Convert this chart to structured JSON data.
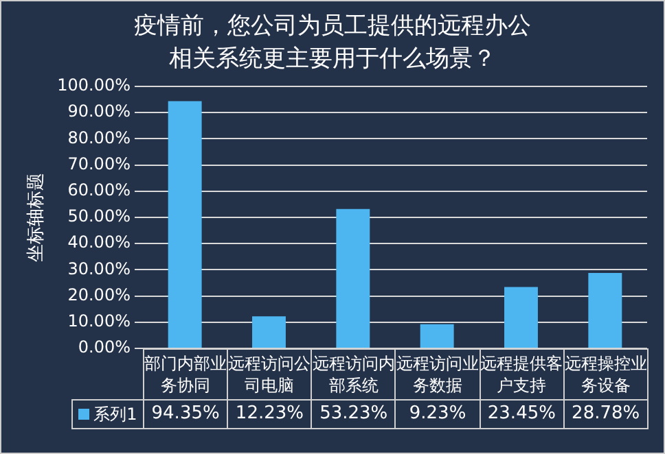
{
  "chart_data": {
    "type": "bar",
    "title": "疫情前，您公司为员工提供的远程办公相关系统更主要用于什么场景？",
    "ylabel": "坐标轴标题",
    "categories": [
      "部门内部业务协同",
      "远程访问公司电脑",
      "远程访问内部系统",
      "远程访问业务数据",
      "远程提供客户支持",
      "远程操控业务设备"
    ],
    "series": [
      {
        "name": "系列1",
        "color": "#4db5f0",
        "values": [
          94.35,
          12.23,
          53.23,
          9.23,
          23.45,
          28.78
        ],
        "value_labels": [
          "94.35%",
          "12.23%",
          "53.23%",
          "9.23%",
          "23.45%",
          "28.78%"
        ]
      }
    ],
    "ylim": [
      0,
      100
    ],
    "yticks": [
      {
        "value": 0,
        "label": "0.00%"
      },
      {
        "value": 10,
        "label": "10.00%"
      },
      {
        "value": 20,
        "label": "20.00%"
      },
      {
        "value": 30,
        "label": "30.00%"
      },
      {
        "value": 40,
        "label": "40.00%"
      },
      {
        "value": 50,
        "label": "50.00%"
      },
      {
        "value": 60,
        "label": "60.00%"
      },
      {
        "value": 70,
        "label": "70.00%"
      },
      {
        "value": 80,
        "label": "80.00%"
      },
      {
        "value": 90,
        "label": "90.00%"
      },
      {
        "value": 100,
        "label": "100.00%"
      }
    ],
    "grid": "y",
    "legend": "bottom"
  }
}
